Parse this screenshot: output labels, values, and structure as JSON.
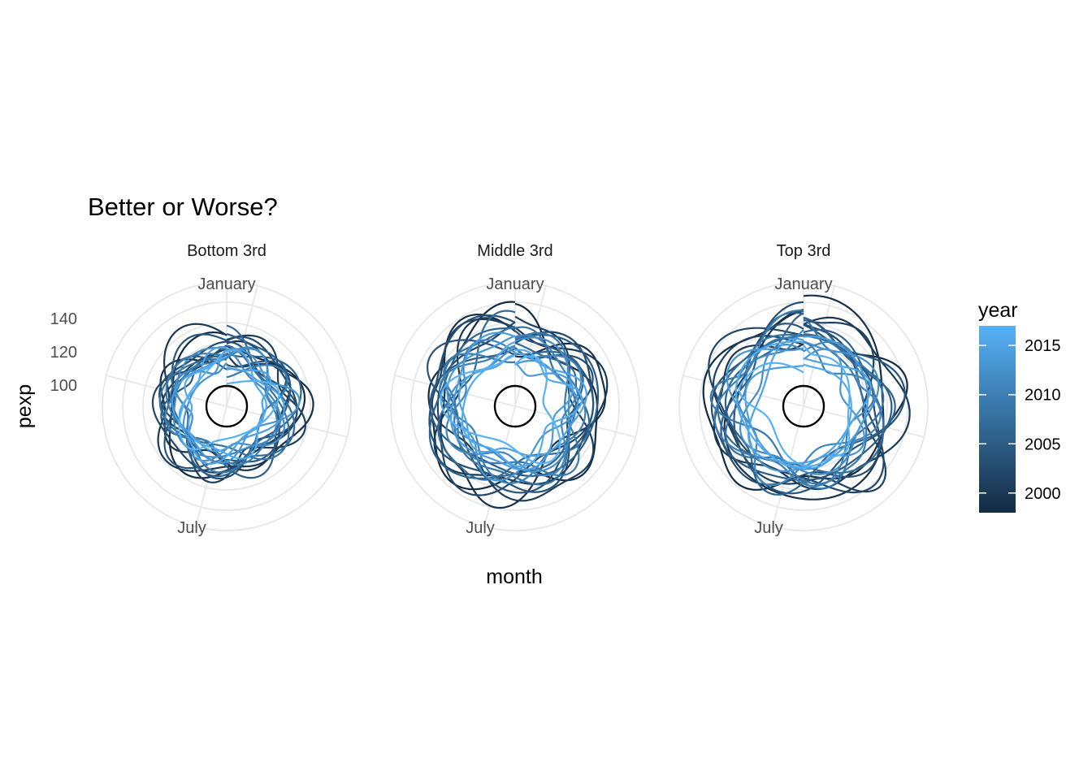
{
  "chart_data": {
    "type": "line",
    "coord": "polar",
    "title": "Better or Worse?",
    "xlabel": "month",
    "ylabel": "pexp",
    "x_ticks": [
      "January",
      "July"
    ],
    "y_ticks": [
      100,
      120,
      140
    ],
    "ylim": [
      60,
      160
    ],
    "reference_value": 85,
    "grid": true,
    "legend": {
      "title": "year",
      "position": "right",
      "breaks": [
        2000,
        2005,
        2010,
        2015
      ],
      "range": [
        1998,
        2017
      ],
      "color_low": "#132B43",
      "color_high": "#56B1F7"
    },
    "facets": [
      {
        "label": "Bottom 3rd",
        "years": [
          1998,
          1999,
          2000,
          2001,
          2002,
          2003,
          2004,
          2005,
          2006,
          2007,
          2008,
          2009,
          2010,
          2011,
          2012,
          2013,
          2014,
          2015,
          2016,
          2017
        ],
        "base": [
          125,
          123,
          124,
          121,
          122,
          118,
          120,
          117,
          116,
          115,
          114,
          112,
          111,
          110,
          108,
          107,
          105,
          104,
          103,
          102
        ],
        "amplitude": [
          18,
          17,
          16,
          16,
          15,
          15,
          14,
          14,
          14,
          13,
          13,
          13,
          12,
          12,
          12,
          12,
          11,
          11,
          11,
          11
        ]
      },
      {
        "label": "Middle 3rd",
        "years": [
          1998,
          1999,
          2000,
          2001,
          2002,
          2003,
          2004,
          2005,
          2006,
          2007,
          2008,
          2009,
          2010,
          2011,
          2012,
          2013,
          2014,
          2015,
          2016,
          2017
        ],
        "base": [
          142,
          140,
          138,
          139,
          136,
          135,
          133,
          132,
          130,
          128,
          127,
          125,
          123,
          121,
          119,
          117,
          115,
          113,
          111,
          109
        ],
        "amplitude": [
          20,
          19,
          18,
          18,
          17,
          17,
          16,
          16,
          15,
          15,
          14,
          14,
          14,
          13,
          13,
          13,
          12,
          12,
          12,
          12
        ]
      },
      {
        "label": "Top 3rd",
        "years": [
          1998,
          1999,
          2000,
          2001,
          2002,
          2003,
          2004,
          2005,
          2006,
          2007,
          2008,
          2009,
          2010,
          2011,
          2012,
          2013,
          2014,
          2015,
          2016,
          2017
        ],
        "base": [
          146,
          145,
          143,
          142,
          140,
          139,
          137,
          136,
          134,
          132,
          130,
          128,
          126,
          124,
          122,
          120,
          118,
          116,
          114,
          112
        ],
        "amplitude": [
          18,
          17,
          17,
          16,
          16,
          15,
          15,
          15,
          14,
          14,
          14,
          13,
          13,
          13,
          12,
          12,
          12,
          11,
          11,
          11
        ]
      }
    ]
  }
}
